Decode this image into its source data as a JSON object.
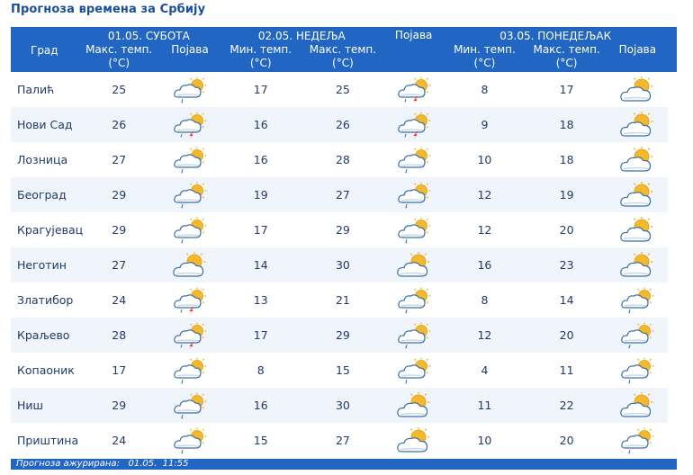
{
  "title": "Прогноза времена за Србију",
  "headers": {
    "city": "Град",
    "day1": "01.05. СУБОТА",
    "day2": "02.05. НЕДЕЉА",
    "day3": "03.05. ПОНЕДЕЉАК",
    "max_temp": "Макс. темп.",
    "min_temp": "Мин. темп.",
    "unit": "(°C)",
    "phenomenon": "Појава"
  },
  "icons_legend": {
    "cloud-rain": "cloud with sun and light rain",
    "cloud-storm": "cloud with sun, rain and lightning",
    "partly-cloudy": "sun behind clouds"
  },
  "rows": [
    {
      "city": "Палић",
      "d1_max": "25",
      "d1_icon": "cloud-rain",
      "d2_min": "17",
      "d2_max": "25",
      "d2_icon": "cloud-storm",
      "d3_min": "8",
      "d3_max": "17",
      "d3_icon": "partly-cloudy"
    },
    {
      "city": "Нови Сад",
      "d1_max": "26",
      "d1_icon": "cloud-storm",
      "d2_min": "16",
      "d2_max": "26",
      "d2_icon": "cloud-storm",
      "d3_min": "9",
      "d3_max": "18",
      "d3_icon": "partly-cloudy"
    },
    {
      "city": "Лозница",
      "d1_max": "27",
      "d1_icon": "cloud-rain",
      "d2_min": "16",
      "d2_max": "28",
      "d2_icon": "cloud-rain",
      "d3_min": "10",
      "d3_max": "18",
      "d3_icon": "partly-cloudy"
    },
    {
      "city": "Београд",
      "d1_max": "29",
      "d1_icon": "cloud-rain",
      "d2_min": "19",
      "d2_max": "27",
      "d2_icon": "cloud-rain",
      "d3_min": "12",
      "d3_max": "19",
      "d3_icon": "partly-cloudy"
    },
    {
      "city": "Крагујевац",
      "d1_max": "29",
      "d1_icon": "cloud-rain",
      "d2_min": "17",
      "d2_max": "29",
      "d2_icon": "cloud-rain",
      "d3_min": "12",
      "d3_max": "20",
      "d3_icon": "partly-cloudy"
    },
    {
      "city": "Неготин",
      "d1_max": "27",
      "d1_icon": "partly-cloudy",
      "d2_min": "14",
      "d2_max": "30",
      "d2_icon": "partly-cloudy",
      "d3_min": "16",
      "d3_max": "23",
      "d3_icon": "partly-cloudy"
    },
    {
      "city": "Златибор",
      "d1_max": "24",
      "d1_icon": "cloud-storm",
      "d2_min": "13",
      "d2_max": "21",
      "d2_icon": "cloud-rain",
      "d3_min": "8",
      "d3_max": "14",
      "d3_icon": "cloud-rain"
    },
    {
      "city": "Краљево",
      "d1_max": "28",
      "d1_icon": "cloud-storm",
      "d2_min": "17",
      "d2_max": "29",
      "d2_icon": "cloud-rain",
      "d3_min": "12",
      "d3_max": "20",
      "d3_icon": "cloud-rain"
    },
    {
      "city": "Копаоник",
      "d1_max": "17",
      "d1_icon": "cloud-rain",
      "d2_min": "8",
      "d2_max": "15",
      "d2_icon": "cloud-rain",
      "d3_min": "4",
      "d3_max": "11",
      "d3_icon": "cloud-rain"
    },
    {
      "city": "Ниш",
      "d1_max": "29",
      "d1_icon": "cloud-rain",
      "d2_min": "16",
      "d2_max": "30",
      "d2_icon": "partly-cloudy",
      "d3_min": "11",
      "d3_max": "22",
      "d3_icon": "partly-cloudy"
    },
    {
      "city": "Приштина",
      "d1_max": "24",
      "d1_icon": "cloud-rain",
      "d2_min": "15",
      "d2_max": "27",
      "d2_icon": "partly-cloudy",
      "d3_min": "10",
      "d3_max": "20",
      "d3_icon": "cloud-rain"
    }
  ],
  "footer": {
    "label": "Прогноза ажурирана:",
    "date": "01.05.",
    "time": "11:55"
  },
  "colors": {
    "header_bg": "#2266c4",
    "row_alt": "#f0f4fb",
    "text": "#203a6a",
    "sun": "#f3b92a",
    "cloud_outline": "#3a6fa8",
    "lightning": "#d8302b"
  }
}
